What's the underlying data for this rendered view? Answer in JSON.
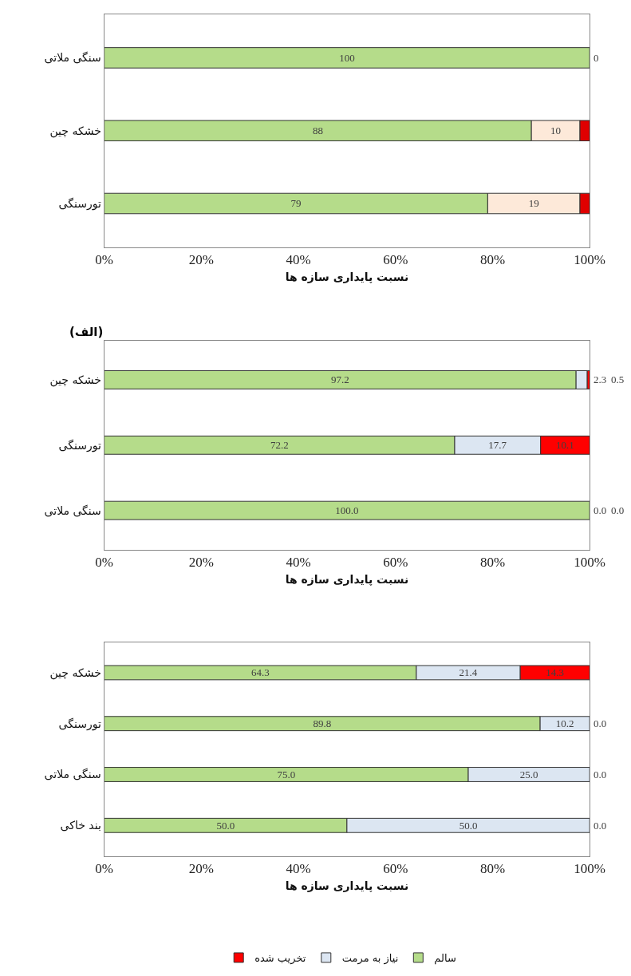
{
  "chart_data": [
    {
      "type": "bar",
      "orientation": "horizontal",
      "stacked": true,
      "categories": [
        "سنگی ملاتی",
        "خشکه چین",
        "تورسنگی"
      ],
      "xlabel": "نسبت پایداری سازه ها",
      "xlim": [
        0,
        100
      ],
      "xticks": [
        {
          "value": 0,
          "label": "0%"
        },
        {
          "value": 20,
          "label": "20%"
        },
        {
          "value": 40,
          "label": "40%"
        },
        {
          "value": 60,
          "label": "60%"
        },
        {
          "value": 80,
          "label": "80%"
        },
        {
          "value": 100,
          "label": "100%"
        }
      ],
      "grid": false,
      "legend": false,
      "series": [
        {
          "color": "#b5dc8a",
          "values": [
            100,
            88,
            79
          ],
          "value_labels": [
            "100",
            "88",
            "79"
          ]
        },
        {
          "color": "#fde9d9",
          "values": [
            0,
            10,
            19
          ],
          "value_labels": [
            "0",
            "10",
            "19"
          ]
        },
        {
          "color": "#e00000",
          "values": [
            0,
            2,
            2
          ],
          "value_labels": [
            null,
            null,
            null
          ]
        }
      ]
    },
    {
      "type": "bar",
      "orientation": "horizontal",
      "stacked": true,
      "categories": [
        "خشکه چین",
        "تورسنگی",
        "سنگی ملاتی"
      ],
      "xlabel": "نسبت پایداری سازه ها",
      "xlim": [
        0,
        100
      ],
      "xticks": [
        {
          "value": 0,
          "label": "0%"
        },
        {
          "value": 20,
          "label": "20%"
        },
        {
          "value": 40,
          "label": "40%"
        },
        {
          "value": 60,
          "label": "60%"
        },
        {
          "value": 80,
          "label": "80%"
        },
        {
          "value": 100,
          "label": "100%"
        }
      ],
      "grid": false,
      "legend": false,
      "annotations": [
        "(الف)"
      ],
      "series": [
        {
          "color": "#b5dc8a",
          "values": [
            97.2,
            72.2,
            100.0
          ],
          "value_labels": [
            "97.2",
            "72.2",
            "100.0"
          ]
        },
        {
          "color": "#dce6f2",
          "values": [
            2.3,
            17.7,
            0.0
          ],
          "value_labels": [
            "2.3",
            "17.7",
            "0.0"
          ]
        },
        {
          "color": "#ff0000",
          "values": [
            0.5,
            10.1,
            0.0
          ],
          "value_labels": [
            "0.5",
            "10.1",
            "0.0"
          ]
        }
      ]
    },
    {
      "type": "bar",
      "orientation": "horizontal",
      "stacked": true,
      "categories": [
        "خشکه چین",
        "تورسنگی",
        "سنگی ملاتی",
        "بند خاکی"
      ],
      "xlabel": "نسبت پایداری سازه ها",
      "xlim": [
        0,
        100
      ],
      "xticks": [
        {
          "value": 0,
          "label": "0%"
        },
        {
          "value": 20,
          "label": "20%"
        },
        {
          "value": 40,
          "label": "40%"
        },
        {
          "value": 60,
          "label": "60%"
        },
        {
          "value": 80,
          "label": "80%"
        },
        {
          "value": 100,
          "label": "100%"
        }
      ],
      "grid": false,
      "legend": "bottom",
      "series": [
        {
          "name": "سالم",
          "color": "#b5dc8a",
          "values": [
            64.3,
            89.8,
            75.0,
            50.0
          ],
          "value_labels": [
            "64.3",
            "89.8",
            "75.0",
            "50.0"
          ]
        },
        {
          "name": "نیاز به مرمت",
          "color": "#dce6f2",
          "values": [
            21.4,
            10.2,
            25.0,
            50.0
          ],
          "value_labels": [
            "21.4",
            "10.2",
            "25.0",
            "50.0"
          ]
        },
        {
          "name": "تخریب شده",
          "color": "#ff0000",
          "values": [
            14.3,
            0.0,
            0.0,
            0.0
          ],
          "value_labels": [
            "14.3",
            "0.0",
            "0.0",
            "0.0"
          ]
        }
      ]
    }
  ]
}
